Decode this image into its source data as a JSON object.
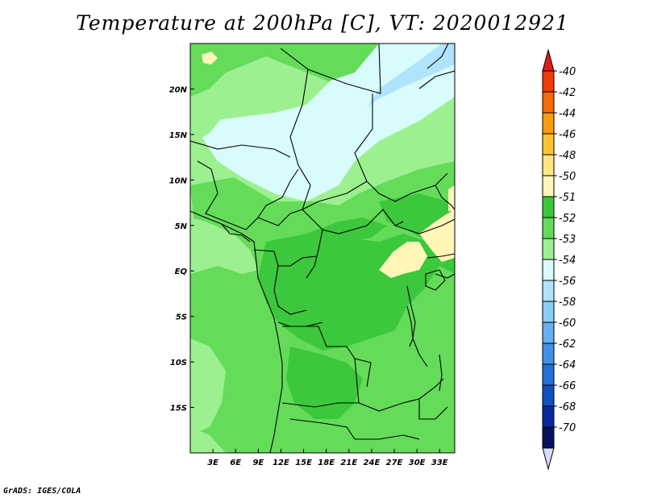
{
  "title": "Temperature at 200hPa [C], VT: 2020012921",
  "credit": "GrADS: IGES/COLA",
  "map": {
    "lon_range": [
      0,
      35
    ],
    "lat_range": [
      -20,
      25
    ],
    "x_ticks": [
      "3E",
      "6E",
      "9E",
      "12E",
      "15E",
      "18E",
      "21E",
      "24E",
      "27E",
      "30E",
      "33E"
    ],
    "y_ticks": [
      "20N",
      "15N",
      "10N",
      "5N",
      "EQ",
      "5S",
      "10S",
      "15S"
    ]
  },
  "colorbar": {
    "labels": [
      "-40",
      "-42",
      "-44",
      "-46",
      "-48",
      "-50",
      "-51",
      "-52",
      "-53",
      "-54",
      "-56",
      "-58",
      "-60",
      "-62",
      "-64",
      "-66",
      "-68",
      "-70"
    ],
    "colors": [
      "#e31a1c",
      "#f03b08",
      "#f66a08",
      "#fa9b0e",
      "#fcc232",
      "#fde680",
      "#fff6b8",
      "#3cc83c",
      "#64dc5a",
      "#9cf090",
      "#d8fcfc",
      "#b0e4fc",
      "#88ccf8",
      "#64b0f0",
      "#4090e8",
      "#2470d8",
      "#1050c0",
      "#08289c",
      "#06125e",
      "#d8d8f8"
    ]
  },
  "fields": {
    "c51": "#fff6b8",
    "c52": "#3cc83c",
    "c53": "#64dc5a",
    "c54": "#9cf090",
    "c56": "#d8fcfc",
    "c58": "#b0e4fc",
    "c60": "#88ccf8"
  }
}
